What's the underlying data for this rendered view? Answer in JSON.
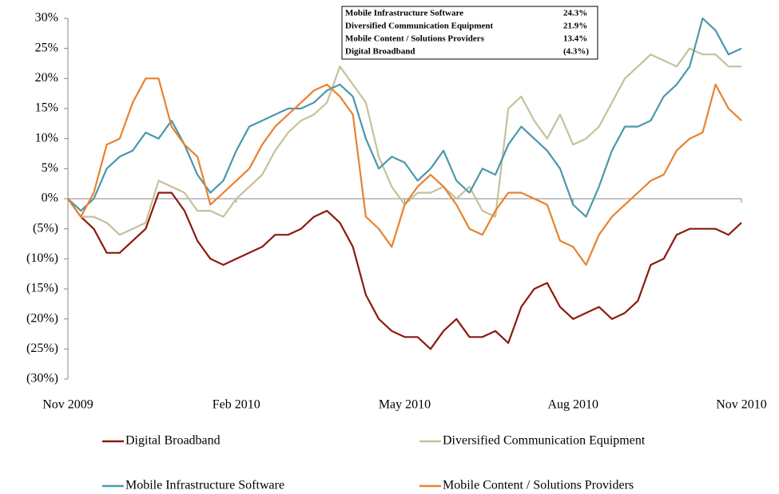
{
  "chart_data": {
    "type": "line",
    "categories": [
      "Nov 2009",
      null,
      null,
      null,
      null,
      null,
      null,
      null,
      null,
      null,
      null,
      null,
      null,
      "Feb 2010",
      null,
      null,
      null,
      null,
      null,
      null,
      null,
      null,
      null,
      null,
      null,
      null,
      "May 2010",
      null,
      null,
      null,
      null,
      null,
      null,
      null,
      null,
      null,
      null,
      null,
      null,
      "Aug 2010",
      null,
      null,
      null,
      null,
      null,
      null,
      null,
      null,
      null,
      null,
      null,
      null,
      "Nov 2010"
    ],
    "series": [
      {
        "name": "Digital Broadband",
        "color": "#8b1a10",
        "values": [
          0,
          -3,
          -5,
          -9,
          -9,
          -7,
          -5,
          1,
          1,
          -2,
          -7,
          -10,
          -11,
          -10,
          -9,
          -8,
          -6,
          -6,
          -5,
          -3,
          -2,
          -4,
          -8,
          -16,
          -20,
          -22,
          -23,
          -23,
          -25,
          -22,
          -20,
          -23,
          -23,
          -22,
          -24,
          -18,
          -15,
          -14,
          -18,
          -20,
          -19,
          -18,
          -20,
          -19,
          -17,
          -11,
          -10,
          -6,
          -5,
          -5,
          -5,
          -6,
          -4
        ]
      },
      {
        "name": "Diversified Communication Equipment",
        "color": "#c4c29b",
        "values": [
          0,
          -3,
          -3,
          -4,
          -6,
          -5,
          -4,
          3,
          2,
          1,
          -2,
          -2,
          -3,
          0,
          2,
          4,
          8,
          11,
          13,
          14,
          16,
          22,
          19,
          16,
          7,
          2,
          -1,
          1,
          1,
          2,
          0,
          2,
          -2,
          -3,
          15,
          17,
          13,
          10,
          14,
          9,
          10,
          12,
          16,
          20,
          22,
          24,
          23,
          22,
          25,
          24,
          24,
          22,
          22
        ]
      },
      {
        "name": "Mobile Infrastructure Software",
        "color": "#4a98ab",
        "values": [
          0,
          -2,
          0,
          5,
          7,
          8,
          11,
          10,
          13,
          9,
          4,
          1,
          3,
          8,
          12,
          13,
          14,
          15,
          15,
          16,
          18,
          19,
          17,
          10,
          5,
          7,
          6,
          3,
          5,
          8,
          3,
          1,
          5,
          4,
          9,
          12,
          10,
          8,
          5,
          -1,
          -3,
          2,
          8,
          12,
          12,
          13,
          17,
          19,
          22,
          30,
          28,
          24,
          25
        ]
      },
      {
        "name": "Mobile Content / Solutions Providers",
        "color": "#e8822e",
        "values": [
          0,
          -3,
          1,
          9,
          10,
          16,
          20,
          20,
          12,
          9,
          7,
          -1,
          1,
          3,
          5,
          9,
          12,
          14,
          16,
          18,
          19,
          17,
          14,
          -3,
          -5,
          -8,
          -1,
          2,
          4,
          2,
          -1,
          -5,
          -6,
          -2,
          1,
          1,
          0,
          -1,
          -7,
          -8,
          -11,
          -6,
          -3,
          -1,
          1,
          3,
          4,
          8,
          10,
          11,
          19,
          15,
          13
        ]
      }
    ],
    "ylim": [
      -30,
      30
    ],
    "yticks": [
      {
        "value": -30,
        "label": "(30%)"
      },
      {
        "value": -25,
        "label": "(25%)"
      },
      {
        "value": -20,
        "label": "(20%)"
      },
      {
        "value": -15,
        "label": "(15%)"
      },
      {
        "value": -10,
        "label": "(10%)"
      },
      {
        "value": -5,
        "label": "(5%)"
      },
      {
        "value": 0,
        "label": "0%"
      },
      {
        "value": 5,
        "label": "5%"
      },
      {
        "value": 10,
        "label": "10%"
      },
      {
        "value": 15,
        "label": "15%"
      },
      {
        "value": 20,
        "label": "20%"
      },
      {
        "value": 25,
        "label": "25%"
      },
      {
        "value": 30,
        "label": "30%"
      }
    ],
    "legend": "bottom",
    "summary": {
      "names": [
        "Mobile Infrastructure Software",
        "Diversified Communication Equipment",
        "Mobile Content / Solutions Providers",
        "Digital Broadband"
      ],
      "values": [
        24.3,
        21.9,
        13.4,
        -4.3
      ],
      "value_labels": [
        "24.3%",
        "21.9%",
        "13.4%",
        "(4.3%)"
      ]
    }
  }
}
